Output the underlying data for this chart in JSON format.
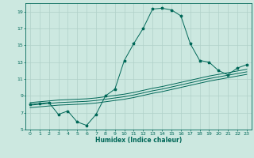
{
  "xlabel": "Humidex (Indice chaleur)",
  "bg_color": "#cce8e0",
  "grid_color": "#b0d0c8",
  "line_color": "#006858",
  "xlim": [
    -0.5,
    23.5
  ],
  "ylim": [
    5,
    20
  ],
  "xticks": [
    0,
    1,
    2,
    3,
    4,
    5,
    6,
    7,
    8,
    9,
    10,
    11,
    12,
    13,
    14,
    15,
    16,
    17,
    18,
    19,
    20,
    21,
    22,
    23
  ],
  "yticks": [
    5,
    7,
    9,
    11,
    13,
    15,
    17,
    19
  ],
  "series1_x": [
    0,
    1,
    2,
    3,
    4,
    5,
    6,
    7,
    8,
    9,
    10,
    11,
    12,
    13,
    14,
    15,
    16,
    17,
    18,
    19,
    20,
    21,
    22,
    23
  ],
  "series1_y": [
    8.0,
    8.1,
    8.2,
    6.8,
    7.2,
    5.9,
    5.5,
    6.8,
    9.0,
    9.8,
    13.2,
    15.2,
    17.0,
    19.3,
    19.4,
    19.2,
    18.5,
    15.2,
    13.2,
    13.0,
    12.0,
    11.5,
    12.3,
    12.7
  ],
  "series2_x": [
    0,
    1,
    2,
    3,
    4,
    5,
    6,
    7,
    8,
    9,
    10,
    11,
    12,
    13,
    14,
    15,
    16,
    17,
    18,
    19,
    20,
    21,
    22,
    23
  ],
  "series2_y": [
    8.2,
    8.3,
    8.4,
    8.5,
    8.55,
    8.6,
    8.65,
    8.75,
    8.9,
    9.05,
    9.2,
    9.4,
    9.65,
    9.9,
    10.1,
    10.35,
    10.6,
    10.85,
    11.1,
    11.35,
    11.55,
    11.75,
    11.95,
    12.15
  ],
  "series3_x": [
    0,
    1,
    2,
    3,
    4,
    5,
    6,
    7,
    8,
    9,
    10,
    11,
    12,
    13,
    14,
    15,
    16,
    17,
    18,
    19,
    20,
    21,
    22,
    23
  ],
  "series3_y": [
    7.9,
    8.0,
    8.1,
    8.2,
    8.25,
    8.3,
    8.35,
    8.45,
    8.6,
    8.75,
    8.9,
    9.1,
    9.35,
    9.6,
    9.8,
    10.05,
    10.3,
    10.55,
    10.8,
    11.05,
    11.25,
    11.45,
    11.65,
    11.85
  ],
  "series4_x": [
    0,
    1,
    2,
    3,
    4,
    5,
    6,
    7,
    8,
    9,
    10,
    11,
    12,
    13,
    14,
    15,
    16,
    17,
    18,
    19,
    20,
    21,
    22,
    23
  ],
  "series4_y": [
    7.6,
    7.7,
    7.8,
    7.9,
    7.95,
    8.0,
    8.05,
    8.15,
    8.3,
    8.45,
    8.6,
    8.8,
    9.05,
    9.3,
    9.5,
    9.75,
    10.0,
    10.25,
    10.5,
    10.75,
    10.95,
    11.15,
    11.35,
    11.55
  ]
}
